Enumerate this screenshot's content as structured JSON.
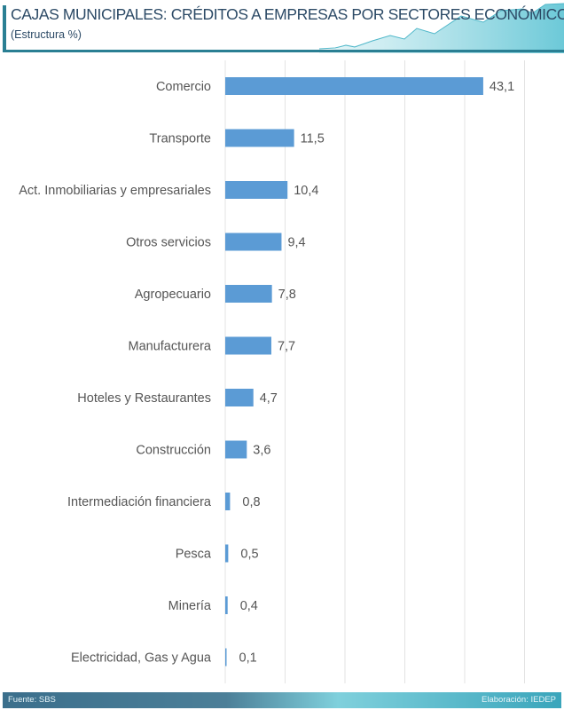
{
  "header": {
    "title": "CAJAS MUNICIPALES: CRÉDITOS A EMPRESAS POR SECTORES ECONÓMICOS",
    "subtitle": "(Estructura %)"
  },
  "footer": {
    "source": "Fuente: SBS",
    "credit": "Elaboración: IEDEP"
  },
  "colors": {
    "bar": "#5b9bd5",
    "accent": "#2a7f93",
    "grid": "#e3e3e3"
  },
  "chart_data": {
    "type": "bar",
    "orientation": "horizontal",
    "title": "CAJAS MUNICIPALES: CRÉDITOS A EMPRESAS POR SECTORES ECONÓMICOS",
    "subtitle": "(Estructura %)",
    "categories": [
      "Comercio",
      "Transporte",
      "Act. Inmobiliarias y empresariales",
      "Otros servicios",
      "Agropecuario",
      "Manufacturera",
      "Hoteles y Restaurantes",
      "Construcción",
      "Intermediación financiera",
      "Pesca",
      "Minería",
      "Electricidad, Gas y Agua"
    ],
    "values": [
      43.1,
      11.5,
      10.4,
      9.4,
      7.8,
      7.7,
      4.7,
      3.6,
      0.8,
      0.5,
      0.4,
      0.1
    ],
    "labels": [
      "43,1",
      "11,5",
      "10,4",
      "9,4",
      "7,8",
      "7,7",
      "4,7",
      "3,6",
      "0,8",
      "0,5",
      "0,4",
      "0,1"
    ],
    "xlim": [
      0,
      50
    ],
    "grid": true,
    "xlabel": "",
    "ylabel": ""
  }
}
